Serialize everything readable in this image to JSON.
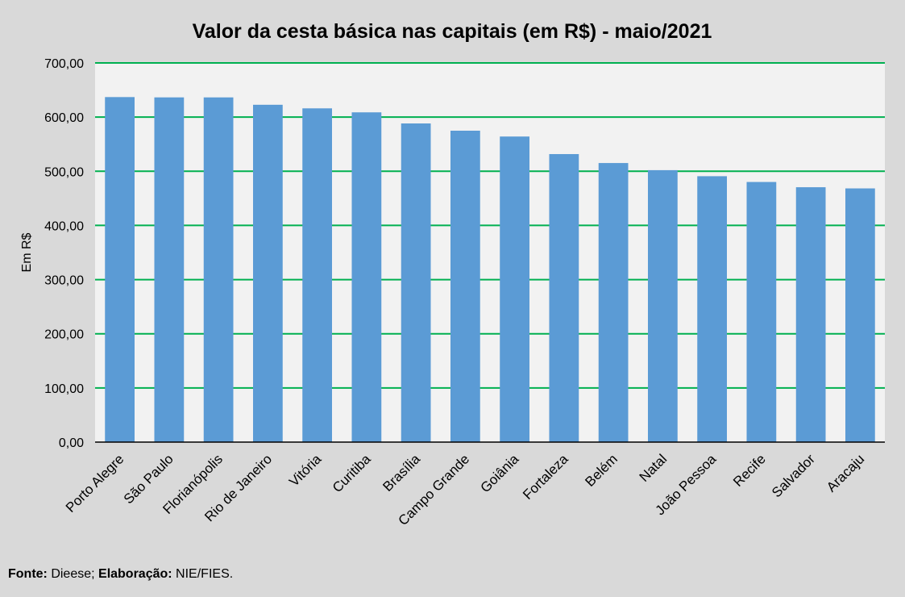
{
  "chart_data": {
    "type": "bar",
    "title": "Valor da cesta básica nas capitais (em R$) - maio/2021",
    "xlabel": "",
    "ylabel": "Em R$",
    "ylim": [
      0,
      700
    ],
    "yticks": [
      "0,00",
      "100,00",
      "200,00",
      "300,00",
      "400,00",
      "500,00",
      "600,00",
      "700,00"
    ],
    "grid": true,
    "legend": "none",
    "categories": [
      "Porto Alegre",
      "São Paulo",
      "Florianópolis",
      "Rio de Janeiro",
      "Vitória",
      "Curitiba",
      "Brasília",
      "Campo Grande",
      "Goiânia",
      "Fortaleza",
      "Belém",
      "Natal",
      "João Pessoa",
      "Recife",
      "Salvador",
      "Aracaju"
    ],
    "values": [
      636.96,
      636.4,
      636.37,
      622.76,
      616.15,
      608.78,
      588.28,
      574.89,
      564.13,
      531.72,
      515.21,
      502.04,
      490.89,
      480.22,
      470.54,
      468.36
    ],
    "colors": {
      "bar": "#5b9bd5",
      "grid": "#00b050",
      "plot_background": "#f2f2f2",
      "page_background": "#d9d9d9"
    }
  },
  "footer": {
    "fonte_label": "Fonte:",
    "fonte_value": " Dieese; ",
    "elaboracao_label": "Elaboração:",
    "elaboracao_value": " NIE/FIES."
  }
}
